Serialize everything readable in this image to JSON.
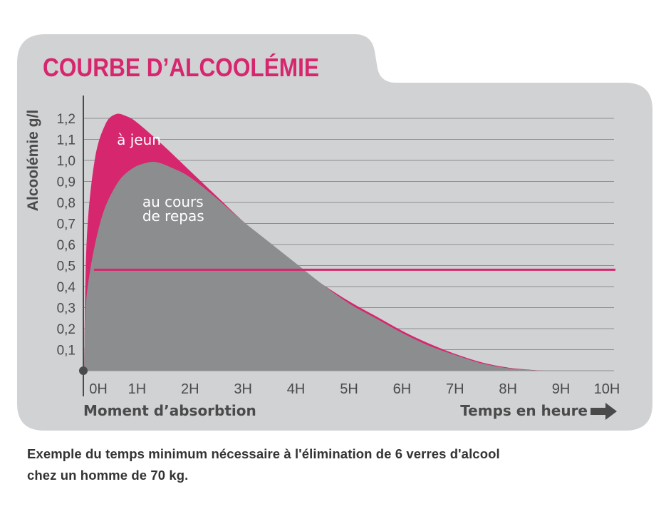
{
  "chart_data": {
    "type": "area",
    "title": "COURBE D’ALCOOLÉMIE",
    "ylabel": "Alcoolémie g/l",
    "xlabel_left": "Moment d’absorbtion",
    "xlabel_right": "Temps en heure",
    "x_ticks": [
      "0H",
      "1H",
      "2H",
      "3H",
      "4H",
      "5H",
      "6H",
      "7H",
      "8H",
      "9H",
      "10H"
    ],
    "y_ticks": [
      "0,1",
      "0,2",
      "0,3",
      "0,4",
      "0,5",
      "0,6",
      "0,7",
      "0,8",
      "0,9",
      "1,0",
      "1,1",
      "1,2"
    ],
    "xlim": [
      0,
      10
    ],
    "ylim": [
      0,
      1.2
    ],
    "grid": true,
    "threshold": 0.48,
    "series": [
      {
        "name": "à jeun",
        "label_lines": [
          "à jeun"
        ],
        "color": "#d6266e",
        "x": [
          0,
          0.05,
          0.2,
          0.4,
          0.6,
          0.8,
          1,
          1.5,
          2,
          2.5,
          3,
          3.5,
          4,
          4.5,
          5,
          5.5,
          6,
          6.5,
          7,
          7.5,
          8,
          8.5,
          8.7
        ],
        "y": [
          0,
          0.62,
          1.0,
          1.17,
          1.22,
          1.21,
          1.18,
          1.07,
          0.95,
          0.83,
          0.71,
          0.6,
          0.5,
          0.41,
          0.33,
          0.26,
          0.19,
          0.13,
          0.08,
          0.04,
          0.015,
          0.003,
          0
        ]
      },
      {
        "name": "au cours de repas",
        "label_lines": [
          "au cours",
          "de repas"
        ],
        "color": "#8c8d8f",
        "x": [
          0,
          0.05,
          0.3,
          0.6,
          0.9,
          1.2,
          1.4,
          1.7,
          2,
          2.5,
          3,
          3.5,
          4,
          4.5,
          5,
          5.5,
          6,
          6.5,
          7,
          7.5,
          8,
          8.5,
          8.7
        ],
        "y": [
          0,
          0.36,
          0.7,
          0.88,
          0.96,
          0.99,
          0.99,
          0.96,
          0.92,
          0.82,
          0.71,
          0.61,
          0.51,
          0.41,
          0.32,
          0.25,
          0.18,
          0.12,
          0.075,
          0.035,
          0.012,
          0.002,
          0
        ]
      }
    ],
    "colors": {
      "accent": "#d6266e",
      "panel": "#d1d2d4",
      "area_gray": "#8c8d8f",
      "text": "#4a4a4a"
    },
    "arrow_icon": "right-arrow-icon"
  },
  "caption": {
    "line1": "Exemple du temps minimum nécessaire à l'élimination de 6 verres d'alcool",
    "line2": "chez un homme de 70 kg."
  }
}
